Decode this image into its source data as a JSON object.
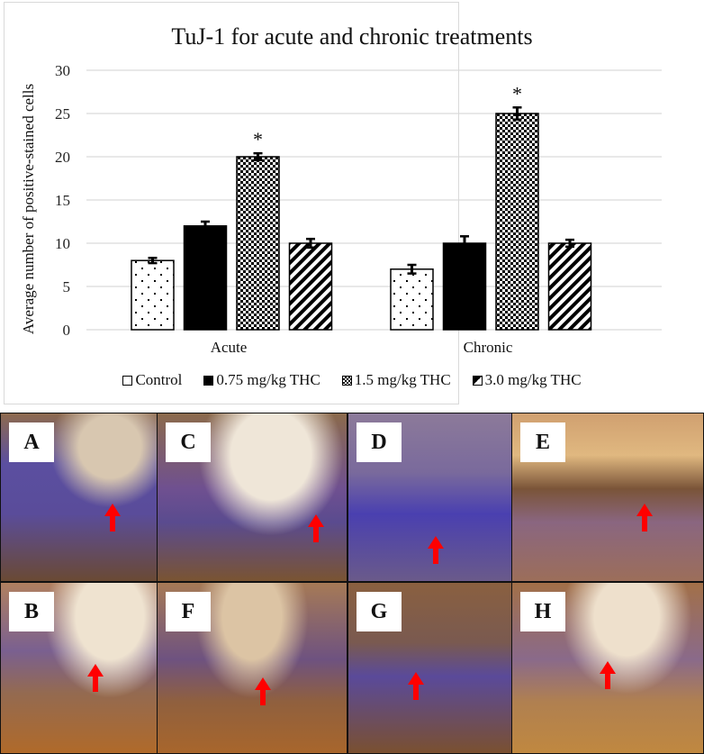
{
  "chart_data": {
    "type": "bar",
    "title": "TuJ-1 for acute and chronic treatments",
    "xlabel": "",
    "ylabel": "Average number of positive-stained cells",
    "ylim": [
      0,
      30
    ],
    "yticks": [
      0,
      5,
      10,
      15,
      20,
      25,
      30
    ],
    "grid": true,
    "legend_position": "bottom",
    "categories": [
      "Acute",
      "Chronic"
    ],
    "series": [
      {
        "name": "Control",
        "values": [
          8,
          7
        ],
        "errors": [
          0.3,
          0.5
        ],
        "pattern": "dots"
      },
      {
        "name": "0.75 mg/kg THC",
        "values": [
          12,
          10
        ],
        "errors": [
          0.5,
          0.8
        ],
        "pattern": "solid"
      },
      {
        "name": "1.5 mg/kg THC",
        "values": [
          20,
          25
        ],
        "errors": [
          0.4,
          0.7
        ],
        "pattern": "checker"
      },
      {
        "name": "3.0 mg/kg THC",
        "values": [
          10,
          10
        ],
        "errors": [
          0.5,
          0.4
        ],
        "pattern": "diagonal"
      }
    ],
    "annotations": [
      {
        "text": "*",
        "category": "Acute",
        "series": "1.5 mg/kg THC"
      },
      {
        "text": "*",
        "category": "Chronic",
        "series": "1.5 mg/kg THC"
      }
    ]
  },
  "title": "TuJ-1 for acute and chronic treatments",
  "ylabel": "Average number of positive-stained cells",
  "categories": [
    "Acute",
    "Chronic"
  ],
  "legend": [
    "Control",
    "0.75 mg/kg THC",
    "1.5 mg/kg THC",
    "3.0 mg/kg THC"
  ],
  "panels": [
    "A",
    "C",
    "D",
    "E",
    "B",
    "F",
    "G",
    "H"
  ],
  "significance_marker": "*"
}
